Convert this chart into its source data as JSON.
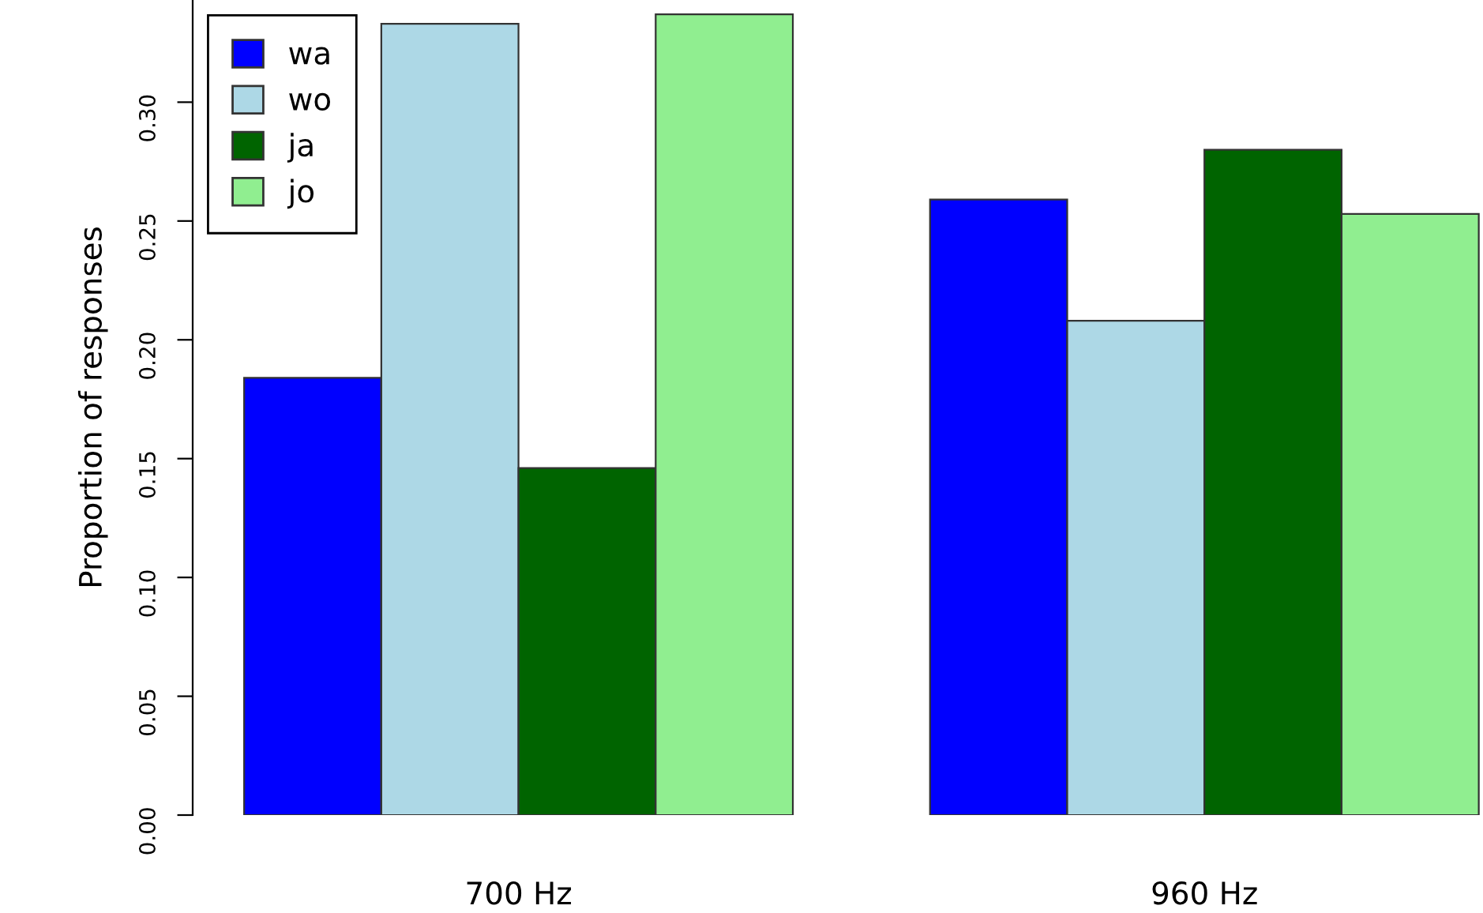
{
  "chart_data": {
    "type": "bar",
    "ylabel": "Proportion of responses",
    "categories": [
      "700 Hz",
      "960 Hz"
    ],
    "series": [
      {
        "name": "wa",
        "color": "#0000ff",
        "values": [
          0.184,
          0.259
        ]
      },
      {
        "name": "wo",
        "color": "#add8e6",
        "values": [
          0.333,
          0.208
        ]
      },
      {
        "name": "ja",
        "color": "#006400",
        "values": [
          0.146,
          0.28
        ]
      },
      {
        "name": "jo",
        "color": "#90ee90",
        "values": [
          0.337,
          0.253
        ]
      }
    ],
    "ylim": [
      0,
      0.343
    ],
    "yticks": [
      {
        "value": 0,
        "label": "0.00"
      },
      0.05,
      {
        "value": 0.1,
        "label": "0.10"
      },
      0.15,
      {
        "value": 0.2,
        "label": "0.20"
      },
      0.25,
      {
        "value": 0.3,
        "label": "0.30"
      }
    ],
    "grid": false,
    "legend": "top left"
  }
}
